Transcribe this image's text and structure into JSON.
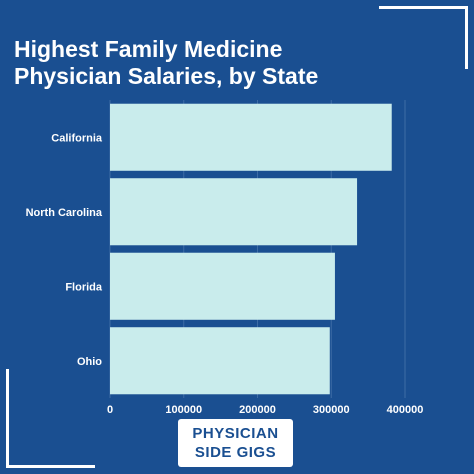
{
  "title_line1": "Highest Family Medicine",
  "title_line2": "Physician Salaries, by State",
  "brand": {
    "line1": "PHYSICIAN",
    "line2": "SIDE GIGS"
  },
  "colors": {
    "background": "#1a4f91",
    "bar": "#c9ecec",
    "text": "#ffffff",
    "grid": "#3d6ca5"
  },
  "chart_data": {
    "type": "bar",
    "orientation": "horizontal",
    "categories": [
      "California",
      "North Carolina",
      "Florida",
      "Ohio"
    ],
    "values": [
      382000,
      335000,
      305000,
      298000
    ],
    "xlim": [
      0,
      400000
    ],
    "x_ticks": [
      "0",
      "100000",
      "200000",
      "300000",
      "400000"
    ],
    "grid": true
  }
}
